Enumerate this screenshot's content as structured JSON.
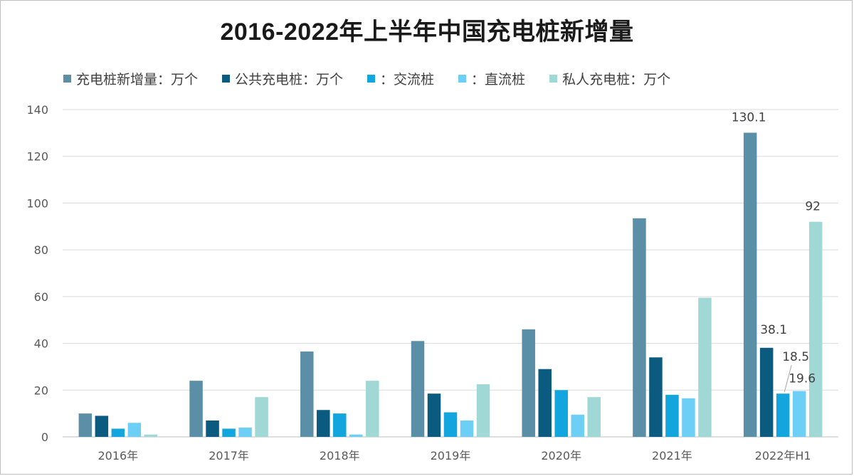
{
  "chart_data": {
    "type": "bar",
    "title": "2016-2022年上半年中国充电桩新增量",
    "categories": [
      "2016年",
      "2017年",
      "2018年",
      "2019年",
      "2020年",
      "2021年",
      "2022年H1"
    ],
    "ylim": [
      0,
      140
    ],
    "yticks": [
      0,
      20,
      40,
      60,
      80,
      100,
      120,
      140
    ],
    "grid": true,
    "legend_position": "top",
    "series": [
      {
        "name": "充电桩新增量：万个",
        "color": "#5b8fa8",
        "values": [
          10,
          24,
          36.5,
          41,
          46,
          93.5,
          130.1
        ]
      },
      {
        "name": "公共充电桩：万个",
        "color": "#0b5a80",
        "values": [
          9,
          7,
          11.5,
          18.5,
          29,
          34,
          38.1
        ]
      },
      {
        "name": "：交流桩",
        "color": "#12a5de",
        "values": [
          3.5,
          3.5,
          10,
          10.5,
          20,
          18,
          18.5
        ]
      },
      {
        "name": "：直流桩",
        "color": "#6dcff6",
        "values": [
          6,
          4,
          1,
          7,
          9.5,
          16.5,
          19.6
        ]
      },
      {
        "name": "私人充电桩：万个",
        "color": "#a0d8d6",
        "values": [
          1,
          17,
          24,
          22.5,
          17,
          59.5,
          92
        ]
      }
    ],
    "data_labels": [
      {
        "series": 0,
        "category": 6,
        "text": "130.1"
      },
      {
        "series": 1,
        "category": 6,
        "text": "38.1"
      },
      {
        "series": 2,
        "category": 6,
        "text": "18.5"
      },
      {
        "series": 3,
        "category": 6,
        "text": "19.6"
      },
      {
        "series": 4,
        "category": 6,
        "text": "92"
      }
    ]
  }
}
